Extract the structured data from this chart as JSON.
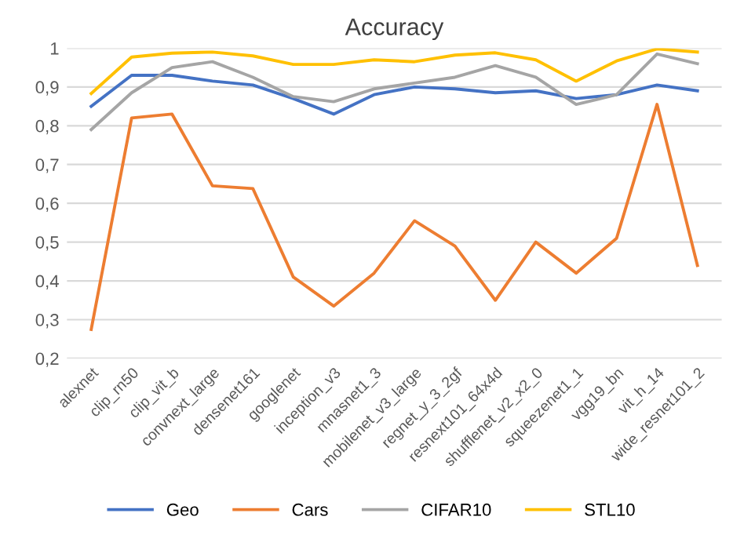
{
  "chart_data": {
    "type": "line",
    "title": "Accuracy",
    "categories": [
      "alexnet",
      "clip_rn50",
      "clip_vit_b",
      "convnext_large",
      "densenet161",
      "googlenet",
      "inception_v3",
      "mnasnet1_3",
      "mobilenet_v3_large",
      "regnet_y_3_2gf",
      "resnext101_64x4d",
      "shufflenet_v2_x2_0",
      "squeezenet1_1",
      "vgg19_bn",
      "vit_h_14",
      "wide_resnet101_2"
    ],
    "series": [
      {
        "name": "Geo",
        "color": "#4472c4",
        "values": [
          0.85,
          0.93,
          0.93,
          0.915,
          0.905,
          0.87,
          0.83,
          0.88,
          0.9,
          0.895,
          0.885,
          0.89,
          0.87,
          0.88,
          0.905,
          0.89
        ]
      },
      {
        "name": "Cars",
        "color": "#ed7d31",
        "values": [
          0.275,
          0.82,
          0.83,
          0.645,
          0.638,
          0.41,
          0.335,
          0.42,
          0.555,
          0.49,
          0.35,
          0.5,
          0.42,
          0.51,
          0.855,
          0.44
        ]
      },
      {
        "name": "CIFAR10",
        "color": "#a5a5a5",
        "values": [
          0.79,
          0.885,
          0.95,
          0.965,
          0.925,
          0.875,
          0.862,
          0.895,
          0.91,
          0.925,
          0.955,
          0.925,
          0.855,
          0.88,
          0.985,
          0.96
        ]
      },
      {
        "name": "STL10",
        "color": "#ffc000",
        "values": [
          0.883,
          0.977,
          0.987,
          0.99,
          0.98,
          0.958,
          0.958,
          0.97,
          0.965,
          0.982,
          0.988,
          0.97,
          0.915,
          0.967,
          0.998,
          0.99
        ]
      }
    ],
    "ylim": [
      0.2,
      1.0
    ],
    "yticks": [
      {
        "value": 0.2,
        "label": "0,2"
      },
      {
        "value": 0.3,
        "label": "0,3"
      },
      {
        "value": 0.4,
        "label": "0,4"
      },
      {
        "value": 0.5,
        "label": "0,5"
      },
      {
        "value": 0.6,
        "label": "0,6"
      },
      {
        "value": 0.7,
        "label": "0,7"
      },
      {
        "value": 0.8,
        "label": "0,8"
      },
      {
        "value": 0.9,
        "label": "0,9"
      },
      1
    ],
    "grid": "y",
    "legend": "bottom",
    "marker": "none",
    "line_style": "solid"
  }
}
